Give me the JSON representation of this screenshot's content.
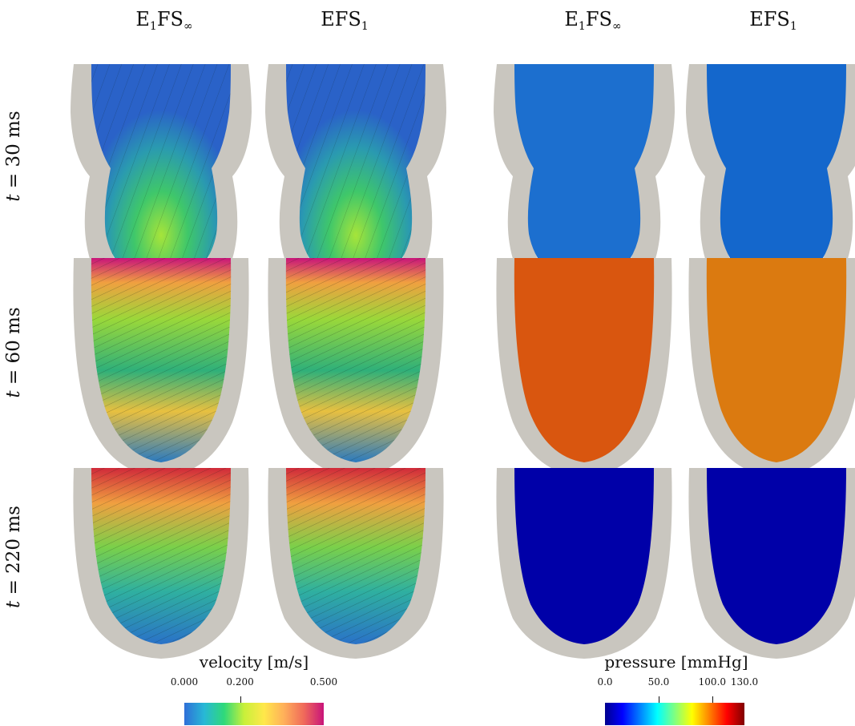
{
  "column_titles": [
    {
      "base": "E",
      "sub1": "1",
      "mid": "FS",
      "sub2": "∞"
    },
    {
      "base": "EFS",
      "sub1": "1",
      "mid": "",
      "sub2": ""
    },
    {
      "base": "E",
      "sub1": "1",
      "mid": "FS",
      "sub2": "∞"
    },
    {
      "base": "EFS",
      "sub1": "1",
      "mid": "",
      "sub2": ""
    }
  ],
  "row_labels": [
    {
      "var": "t",
      "text": " = 30 ms"
    },
    {
      "var": "t",
      "text": " = 60 ms"
    },
    {
      "var": "t",
      "text": " = 220 ms"
    }
  ],
  "colors": {
    "wall": "#c9c6bf",
    "velocity_low": "#2a62c8",
    "pressure_30ms_left": "#1c6fcf",
    "pressure_30ms_right": "#1467cc",
    "pressure_60ms_left": "#d9560f",
    "pressure_60ms_right": "#db7a10",
    "pressure_220ms": "#0000a8"
  },
  "velocity_colorbar": {
    "title": "velocity [m/s]",
    "min": 0.0,
    "max": 0.5,
    "ticks": [
      {
        "value": 0.0,
        "label": "0.000"
      },
      {
        "value": 0.2,
        "label": "0.200"
      },
      {
        "value": 0.5,
        "label": "0.500"
      }
    ],
    "colormap": [
      "#2f6fd8",
      "#27b8d6",
      "#2fd97a",
      "#c8f03a",
      "#ffe84a",
      "#ffb05a",
      "#f06a5a",
      "#c8147a"
    ]
  },
  "pressure_colorbar": {
    "title": "pressure [mmHg]",
    "min": 0.0,
    "max": 130.0,
    "ticks": [
      {
        "value": 0.0,
        "label": "0.0"
      },
      {
        "value": 50.0,
        "label": "50.0"
      },
      {
        "value": 100.0,
        "label": "100.0"
      },
      {
        "value": 130.0,
        "label": "130.0"
      }
    ],
    "colormap": [
      "#00008f",
      "#0000ff",
      "#0080ff",
      "#00ffff",
      "#80ff80",
      "#ffff00",
      "#ff8000",
      "#ff0000",
      "#800000"
    ]
  }
}
